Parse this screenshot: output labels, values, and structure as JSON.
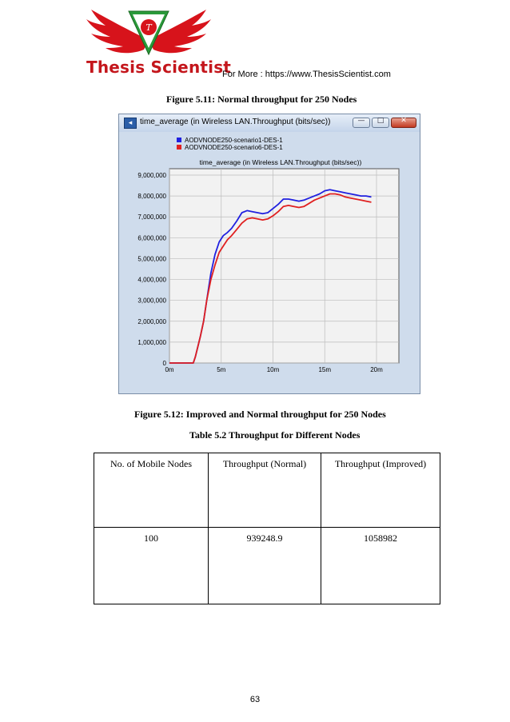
{
  "header": {
    "brand": "Thesis Scientist",
    "for_more": "For More : https://www.ThesisScientist.com"
  },
  "figure_511_caption": "Figure 5.11: Normal throughput for 250 Nodes",
  "figure_512_caption": "Figure 5.12: Improved and Normal throughput for 250 Nodes",
  "table_caption": "Table 5.2 Throughput for Different Nodes",
  "window": {
    "title": "time_average (in Wireless LAN.Throughput (bits/sec))"
  },
  "chart_data": {
    "type": "line",
    "title": "time_average (in Wireless LAN.Throughput (bits/sec))",
    "xlabel": "",
    "ylabel": "",
    "x_unit": "minutes",
    "xlim": [
      0,
      20
    ],
    "ylim": [
      0,
      9000000
    ],
    "x_ticks": [
      "0m",
      "5m",
      "10m",
      "15m",
      "20m"
    ],
    "y_ticks": [
      "0",
      "1,000,000",
      "2,000,000",
      "3,000,000",
      "4,000,000",
      "5,000,000",
      "6,000,000",
      "7,000,000",
      "8,000,000",
      "9,000,000"
    ],
    "grid": true,
    "legend_position": "top-left",
    "series": [
      {
        "name": "AODVNODE250-scenario1-DES-1",
        "color": "#2020e0",
        "x": [
          2.3,
          2.5,
          3.0,
          3.3,
          3.6,
          4.0,
          4.4,
          4.8,
          5.2,
          5.6,
          6.0,
          6.5,
          7.0,
          7.5,
          8.0,
          8.5,
          9.0,
          9.5,
          10.0,
          10.5,
          11.0,
          11.5,
          12.0,
          12.5,
          13.0,
          13.5,
          14.0,
          14.5,
          15.0,
          15.5,
          16.0,
          16.5,
          17.0,
          17.5,
          18.0,
          18.5,
          19.0,
          19.5
        ],
        "y": [
          0,
          300000,
          1300000,
          2000000,
          3000000,
          4300000,
          5200000,
          5800000,
          6100000,
          6250000,
          6450000,
          6800000,
          7200000,
          7300000,
          7250000,
          7200000,
          7150000,
          7200000,
          7400000,
          7600000,
          7850000,
          7850000,
          7800000,
          7750000,
          7800000,
          7900000,
          8000000,
          8100000,
          8250000,
          8300000,
          8250000,
          8200000,
          8150000,
          8100000,
          8050000,
          8000000,
          8000000,
          7950000
        ]
      },
      {
        "name": "AODVNODE250-scenario6-DES-1",
        "color": "#e02020",
        "x": [
          2.3,
          2.5,
          3.0,
          3.3,
          3.6,
          4.0,
          4.4,
          4.8,
          5.2,
          5.6,
          6.0,
          6.5,
          7.0,
          7.5,
          8.0,
          8.5,
          9.0,
          9.5,
          10.0,
          10.5,
          11.0,
          11.5,
          12.0,
          12.5,
          13.0,
          13.5,
          14.0,
          14.5,
          15.0,
          15.5,
          16.0,
          16.5,
          17.0,
          17.5,
          18.0,
          18.5,
          19.0,
          19.5
        ],
        "y": [
          0,
          300000,
          1300000,
          2000000,
          3000000,
          4000000,
          4700000,
          5300000,
          5600000,
          5900000,
          6100000,
          6400000,
          6700000,
          6900000,
          6950000,
          6900000,
          6850000,
          6900000,
          7050000,
          7250000,
          7500000,
          7550000,
          7500000,
          7450000,
          7500000,
          7650000,
          7800000,
          7900000,
          8000000,
          8100000,
          8100000,
          8050000,
          7950000,
          7900000,
          7850000,
          7800000,
          7750000,
          7700000
        ]
      }
    ]
  },
  "table": {
    "headers": [
      "No. of Mobile Nodes",
      "Throughput (Normal)",
      "Throughput (Improved)"
    ],
    "rows": [
      [
        "100",
        "939248.9",
        "1058982"
      ]
    ]
  },
  "page_number": "63"
}
